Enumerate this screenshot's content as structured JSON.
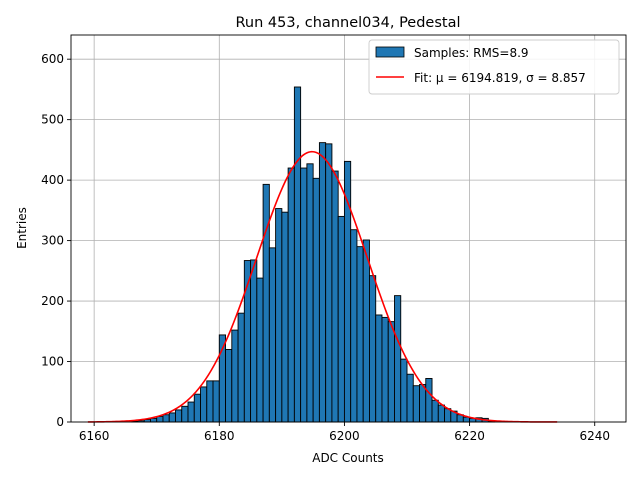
{
  "chart_data": {
    "type": "bar",
    "title": "Run 453, channel034, Pedestal",
    "xlabel": "ADC Counts",
    "ylabel": "Entries",
    "xlim": [
      6156.3,
      6245.0
    ],
    "ylim": [
      0,
      640
    ],
    "xticks": [
      6160,
      6180,
      6200,
      6220,
      6240
    ],
    "yticks": [
      0,
      100,
      200,
      300,
      400,
      500,
      600
    ],
    "grid": true,
    "legend_position": "top-right",
    "bin_width": 1,
    "bar_color": "#1f77b4",
    "fit_color": "#ff0000",
    "series": [
      {
        "name": "Samples: RMS=8.9",
        "type": "histogram",
        "bin_starts": [
          6166,
          6167,
          6168,
          6169,
          6170,
          6171,
          6172,
          6173,
          6174,
          6175,
          6176,
          6177,
          6178,
          6179,
          6180,
          6181,
          6182,
          6183,
          6184,
          6185,
          6186,
          6187,
          6188,
          6189,
          6190,
          6191,
          6192,
          6193,
          6194,
          6195,
          6196,
          6197,
          6198,
          6199,
          6200,
          6201,
          6202,
          6203,
          6204,
          6205,
          6206,
          6207,
          6208,
          6209,
          6210,
          6211,
          6212,
          6213,
          6214,
          6215,
          6216,
          6217,
          6218,
          6219,
          6220,
          6221,
          6222,
          6223
        ],
        "values": [
          1,
          2,
          4,
          6,
          9,
          12,
          15,
          20,
          26,
          33,
          46,
          58,
          68,
          68,
          144,
          120,
          152,
          180,
          267,
          268,
          238,
          393,
          288,
          353,
          347,
          420,
          554,
          420,
          427,
          403,
          462,
          460,
          415,
          340,
          431,
          318,
          290,
          301,
          242,
          177,
          173,
          166,
          209,
          104,
          79,
          60,
          62,
          72,
          36,
          28,
          22,
          18,
          12,
          8,
          6,
          7,
          6,
          1
        ]
      },
      {
        "name": "Fit: μ = 6194.819, σ = 8.857",
        "type": "gaussian",
        "mu": 6194.819,
        "sigma": 8.857,
        "amplitude": 447,
        "x_range": [
          6159,
          6234
        ]
      }
    ]
  }
}
